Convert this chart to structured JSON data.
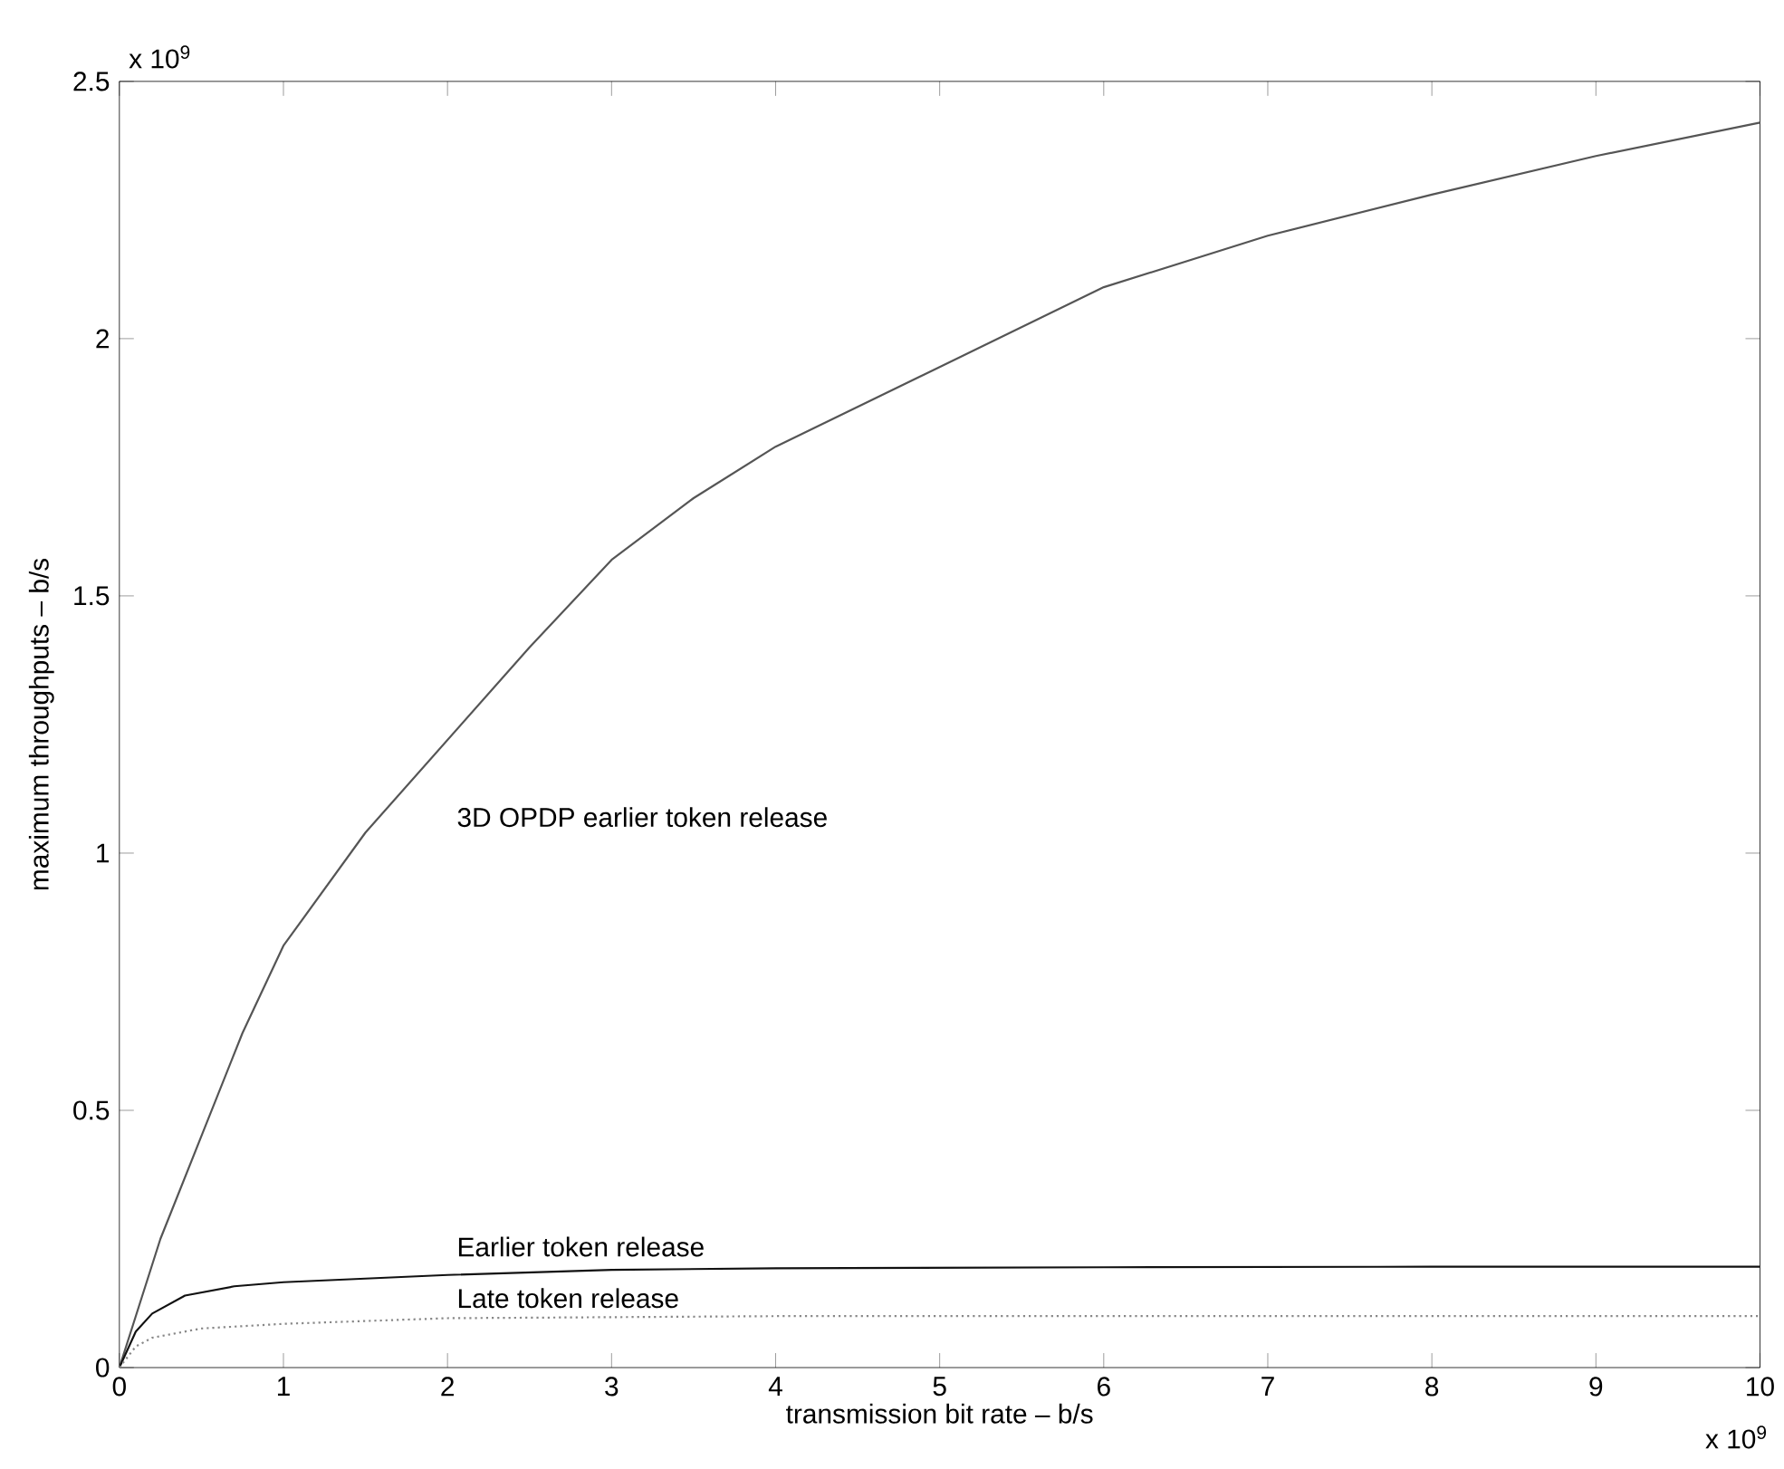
{
  "chart_data": {
    "type": "line",
    "xlabel": "transmission bit rate – b/s",
    "ylabel": "maximum throughputs – b/s",
    "annotations": [
      "x 10$^{9}$",
      "x 10$^{9}$"
    ],
    "xlim": [
      0,
      10
    ],
    "ylim": [
      0,
      2.5
    ],
    "xticks": [
      0,
      1,
      2,
      3,
      4,
      5,
      6,
      7,
      8,
      9,
      10
    ],
    "yticks": [
      0,
      0.5,
      1,
      1.5,
      2,
      2.5
    ],
    "grid": false,
    "legend": false,
    "series": [
      {
        "name": "3D OPDP earlier token release",
        "color": "#555555",
        "line_style": "solid",
        "x": [
          0,
          0.1,
          0.25,
          0.5,
          0.75,
          1,
          1.5,
          2,
          2.5,
          3,
          3.5,
          4,
          5,
          6,
          7,
          8,
          9,
          10
        ],
        "values": [
          0,
          0.1,
          0.25,
          0.45,
          0.65,
          0.82,
          1.04,
          1.22,
          1.4,
          1.57,
          1.69,
          1.79,
          1.945,
          2.1,
          2.2,
          2.28,
          2.355,
          2.42
        ]
      },
      {
        "name": "Earlier token release",
        "color": "#111111",
        "line_style": "solid",
        "x": [
          0,
          0.1,
          0.2,
          0.4,
          0.7,
          1,
          2,
          3,
          4,
          6,
          8,
          10
        ],
        "values": [
          0,
          0.07,
          0.105,
          0.14,
          0.158,
          0.166,
          0.18,
          0.19,
          0.193,
          0.195,
          0.196,
          0.196
        ]
      },
      {
        "name": "Late token release",
        "color": "#888888",
        "line_style": "dotted",
        "x": [
          0,
          0.1,
          0.2,
          0.5,
          1,
          2,
          4,
          6,
          8,
          10
        ],
        "values": [
          0,
          0.041,
          0.058,
          0.076,
          0.085,
          0.096,
          0.1,
          0.1,
          0.1,
          0.1
        ]
      }
    ]
  }
}
